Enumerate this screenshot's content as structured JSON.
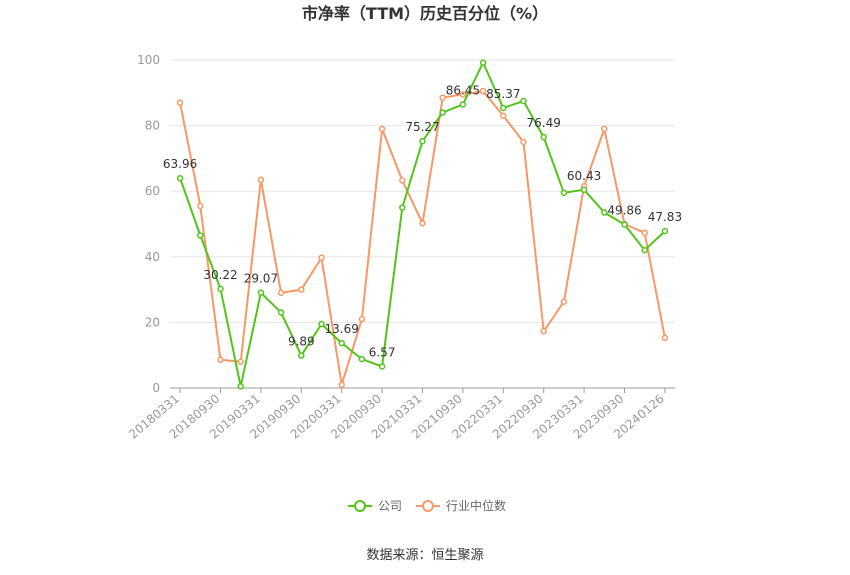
{
  "chart_data": {
    "type": "line",
    "title": "市净率（TTM）历史百分位（%）",
    "xlabel": "",
    "ylabel": "",
    "ylim": [
      0,
      100
    ],
    "y_ticks": [
      0,
      20,
      40,
      60,
      80,
      100
    ],
    "x_tick_labels": [
      "20180331",
      "20180930",
      "20190331",
      "20190930",
      "20200331",
      "20200930",
      "20210331",
      "20210930",
      "20220331",
      "20220930",
      "20230331",
      "20230930",
      "20240126"
    ],
    "x_tick_positions": [
      0,
      2,
      4,
      6,
      8,
      10,
      12,
      14,
      16,
      18,
      20,
      22,
      24
    ],
    "grid": true,
    "legend_position": "bottom-center",
    "series": [
      {
        "name": "公司",
        "color": "#52c41a",
        "values": [
          63.96,
          46.5,
          30.22,
          0.5,
          29.07,
          23.0,
          9.89,
          19.5,
          13.69,
          8.8,
          6.57,
          55.0,
          75.27,
          84.0,
          86.45,
          99.2,
          85.37,
          87.5,
          76.49,
          59.5,
          60.43,
          53.5,
          49.86,
          42.0,
          47.83
        ],
        "labels": {
          "0": "63.96",
          "2": "30.22",
          "4": "29.07",
          "6": "9.89",
          "8": "13.69",
          "10": "6.57",
          "12": "75.27",
          "14": "86.45",
          "16": "85.37",
          "18": "76.49",
          "20": "60.43",
          "22": "49.86",
          "24": "47.83"
        }
      },
      {
        "name": "行业中位数",
        "color": "#f79866",
        "values": [
          87.0,
          55.5,
          8.6,
          8.0,
          63.5,
          29.0,
          30.0,
          39.7,
          1.0,
          21.0,
          79.0,
          63.3,
          50.2,
          88.5,
          89.5,
          90.5,
          83.0,
          75.0,
          17.3,
          26.3,
          61.5,
          79.0,
          50.0,
          47.3,
          15.3
        ]
      }
    ]
  },
  "source": "数据来源：恒生聚源"
}
